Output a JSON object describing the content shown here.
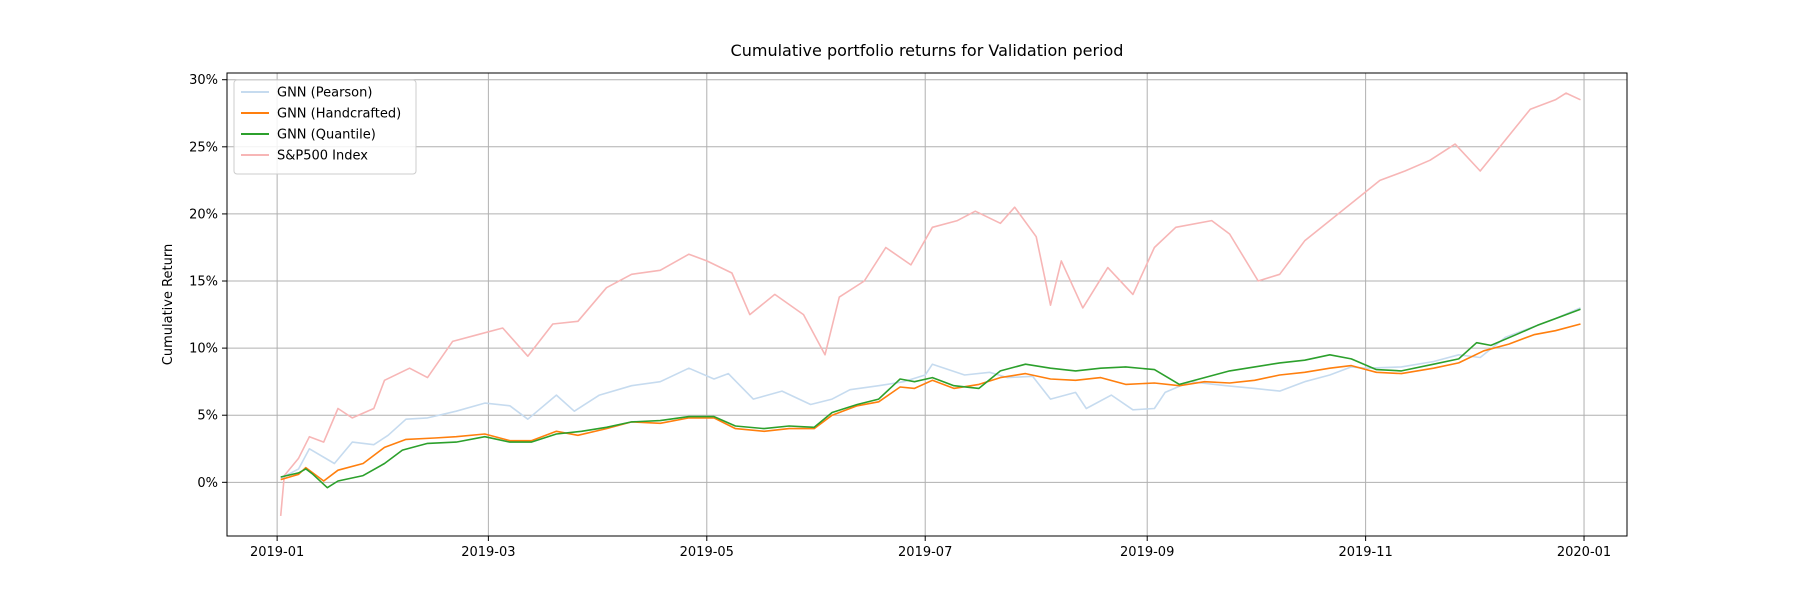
{
  "chart_data": {
    "type": "line",
    "title": "Cumulative portfolio returns for Validation period",
    "xlabel": "",
    "ylabel": "Cumulative Return",
    "x_tick_labels": [
      "2019-01",
      "2019-03",
      "2019-05",
      "2019-07",
      "2019-09",
      "2019-11",
      "2020-01"
    ],
    "x_tick_values": [
      "2019-01-01",
      "2019-03-01",
      "2019-05-01",
      "2019-07-01",
      "2019-09-01",
      "2019-11-01",
      "2020-01-01"
    ],
    "y_tick_labels": [
      "0%",
      "5%",
      "10%",
      "15%",
      "20%",
      "25%",
      "30%"
    ],
    "y_tick_values": [
      0,
      5,
      10,
      15,
      20,
      25,
      30
    ],
    "xlim": [
      "2018-12-18",
      "2020-01-13"
    ],
    "ylim": [
      -4,
      30.5
    ],
    "grid": true,
    "legend_position": "top-left",
    "series": [
      {
        "name": "GNN (Pearson)",
        "color": "#c6dbef",
        "points": [
          [
            "2019-01-02",
            0.3
          ],
          [
            "2019-01-07",
            1.0
          ],
          [
            "2019-01-10",
            2.5
          ],
          [
            "2019-01-17",
            1.4
          ],
          [
            "2019-01-22",
            3.0
          ],
          [
            "2019-01-28",
            2.8
          ],
          [
            "2019-02-01",
            3.5
          ],
          [
            "2019-02-06",
            4.7
          ],
          [
            "2019-02-12",
            4.8
          ],
          [
            "2019-02-20",
            5.3
          ],
          [
            "2019-02-28",
            5.9
          ],
          [
            "2019-03-07",
            5.7
          ],
          [
            "2019-03-12",
            4.7
          ],
          [
            "2019-03-20",
            6.5
          ],
          [
            "2019-03-25",
            5.3
          ],
          [
            "2019-04-01",
            6.5
          ],
          [
            "2019-04-10",
            7.2
          ],
          [
            "2019-04-18",
            7.5
          ],
          [
            "2019-04-26",
            8.5
          ],
          [
            "2019-05-03",
            7.7
          ],
          [
            "2019-05-07",
            8.1
          ],
          [
            "2019-05-14",
            6.2
          ],
          [
            "2019-05-22",
            6.8
          ],
          [
            "2019-05-30",
            5.8
          ],
          [
            "2019-06-05",
            6.2
          ],
          [
            "2019-06-10",
            6.9
          ],
          [
            "2019-06-18",
            7.2
          ],
          [
            "2019-06-25",
            7.5
          ],
          [
            "2019-07-01",
            8.0
          ],
          [
            "2019-07-03",
            8.8
          ],
          [
            "2019-07-12",
            8.0
          ],
          [
            "2019-07-19",
            8.2
          ],
          [
            "2019-07-24",
            7.8
          ],
          [
            "2019-07-31",
            7.9
          ],
          [
            "2019-08-05",
            6.2
          ],
          [
            "2019-08-12",
            6.7
          ],
          [
            "2019-08-15",
            5.5
          ],
          [
            "2019-08-22",
            6.5
          ],
          [
            "2019-08-28",
            5.4
          ],
          [
            "2019-09-03",
            5.5
          ],
          [
            "2019-09-06",
            6.7
          ],
          [
            "2019-09-13",
            7.5
          ],
          [
            "2019-09-23",
            7.2
          ],
          [
            "2019-10-01",
            7.0
          ],
          [
            "2019-10-08",
            6.8
          ],
          [
            "2019-10-15",
            7.5
          ],
          [
            "2019-10-22",
            8.0
          ],
          [
            "2019-10-28",
            8.6
          ],
          [
            "2019-11-01",
            8.5
          ],
          [
            "2019-11-11",
            8.6
          ],
          [
            "2019-11-20",
            9.0
          ],
          [
            "2019-11-27",
            9.5
          ],
          [
            "2019-12-03",
            9.3
          ],
          [
            "2019-12-10",
            10.8
          ],
          [
            "2019-12-17",
            11.5
          ],
          [
            "2019-12-24",
            12.2
          ],
          [
            "2019-12-31",
            13.0
          ]
        ]
      },
      {
        "name": "GNN (Handcrafted)",
        "color": "#ff7f0e",
        "points": [
          [
            "2019-01-02",
            0.2
          ],
          [
            "2019-01-07",
            0.6
          ],
          [
            "2019-01-09",
            1.1
          ],
          [
            "2019-01-14",
            0.1
          ],
          [
            "2019-01-18",
            0.9
          ],
          [
            "2019-01-25",
            1.4
          ],
          [
            "2019-01-31",
            2.6
          ],
          [
            "2019-02-06",
            3.2
          ],
          [
            "2019-02-14",
            3.3
          ],
          [
            "2019-02-20",
            3.4
          ],
          [
            "2019-02-28",
            3.6
          ],
          [
            "2019-03-07",
            3.1
          ],
          [
            "2019-03-13",
            3.1
          ],
          [
            "2019-03-20",
            3.8
          ],
          [
            "2019-03-26",
            3.5
          ],
          [
            "2019-04-03",
            4.0
          ],
          [
            "2019-04-10",
            4.5
          ],
          [
            "2019-04-18",
            4.4
          ],
          [
            "2019-04-26",
            4.8
          ],
          [
            "2019-05-03",
            4.8
          ],
          [
            "2019-05-09",
            4.0
          ],
          [
            "2019-05-17",
            3.8
          ],
          [
            "2019-05-24",
            4.0
          ],
          [
            "2019-05-31",
            4.0
          ],
          [
            "2019-06-05",
            5.0
          ],
          [
            "2019-06-12",
            5.7
          ],
          [
            "2019-06-18",
            6.0
          ],
          [
            "2019-06-24",
            7.1
          ],
          [
            "2019-06-28",
            7.0
          ],
          [
            "2019-07-03",
            7.6
          ],
          [
            "2019-07-09",
            7.0
          ],
          [
            "2019-07-16",
            7.3
          ],
          [
            "2019-07-22",
            7.8
          ],
          [
            "2019-07-29",
            8.1
          ],
          [
            "2019-08-05",
            7.7
          ],
          [
            "2019-08-12",
            7.6
          ],
          [
            "2019-08-19",
            7.8
          ],
          [
            "2019-08-26",
            7.3
          ],
          [
            "2019-09-03",
            7.4
          ],
          [
            "2019-09-10",
            7.2
          ],
          [
            "2019-09-17",
            7.5
          ],
          [
            "2019-09-24",
            7.4
          ],
          [
            "2019-10-01",
            7.6
          ],
          [
            "2019-10-08",
            8.0
          ],
          [
            "2019-10-15",
            8.2
          ],
          [
            "2019-10-22",
            8.5
          ],
          [
            "2019-10-28",
            8.7
          ],
          [
            "2019-11-04",
            8.2
          ],
          [
            "2019-11-11",
            8.1
          ],
          [
            "2019-11-20",
            8.5
          ],
          [
            "2019-11-27",
            8.9
          ],
          [
            "2019-12-04",
            9.8
          ],
          [
            "2019-12-11",
            10.3
          ],
          [
            "2019-12-18",
            11.0
          ],
          [
            "2019-12-24",
            11.3
          ],
          [
            "2019-12-31",
            11.8
          ]
        ]
      },
      {
        "name": "GNN (Quantile)",
        "color": "#2ca02c",
        "points": [
          [
            "2019-01-02",
            0.4
          ],
          [
            "2019-01-07",
            0.7
          ],
          [
            "2019-01-09",
            1.0
          ],
          [
            "2019-01-11",
            0.6
          ],
          [
            "2019-01-15",
            -0.4
          ],
          [
            "2019-01-18",
            0.1
          ],
          [
            "2019-01-25",
            0.5
          ],
          [
            "2019-01-31",
            1.4
          ],
          [
            "2019-02-05",
            2.4
          ],
          [
            "2019-02-12",
            2.9
          ],
          [
            "2019-02-20",
            3.0
          ],
          [
            "2019-02-28",
            3.4
          ],
          [
            "2019-03-07",
            3.0
          ],
          [
            "2019-03-13",
            3.0
          ],
          [
            "2019-03-20",
            3.6
          ],
          [
            "2019-03-27",
            3.8
          ],
          [
            "2019-04-03",
            4.1
          ],
          [
            "2019-04-10",
            4.5
          ],
          [
            "2019-04-18",
            4.6
          ],
          [
            "2019-04-26",
            4.9
          ],
          [
            "2019-05-03",
            4.9
          ],
          [
            "2019-05-09",
            4.2
          ],
          [
            "2019-05-17",
            4.0
          ],
          [
            "2019-05-24",
            4.2
          ],
          [
            "2019-05-31",
            4.1
          ],
          [
            "2019-06-05",
            5.2
          ],
          [
            "2019-06-12",
            5.8
          ],
          [
            "2019-06-18",
            6.2
          ],
          [
            "2019-06-24",
            7.7
          ],
          [
            "2019-06-28",
            7.5
          ],
          [
            "2019-07-03",
            7.8
          ],
          [
            "2019-07-09",
            7.2
          ],
          [
            "2019-07-16",
            7.0
          ],
          [
            "2019-07-22",
            8.3
          ],
          [
            "2019-07-29",
            8.8
          ],
          [
            "2019-08-05",
            8.5
          ],
          [
            "2019-08-12",
            8.3
          ],
          [
            "2019-08-19",
            8.5
          ],
          [
            "2019-08-26",
            8.6
          ],
          [
            "2019-09-03",
            8.4
          ],
          [
            "2019-09-10",
            7.3
          ],
          [
            "2019-09-17",
            7.8
          ],
          [
            "2019-09-24",
            8.3
          ],
          [
            "2019-10-01",
            8.6
          ],
          [
            "2019-10-08",
            8.9
          ],
          [
            "2019-10-15",
            9.1
          ],
          [
            "2019-10-22",
            9.5
          ],
          [
            "2019-10-28",
            9.2
          ],
          [
            "2019-11-04",
            8.4
          ],
          [
            "2019-11-11",
            8.3
          ],
          [
            "2019-11-20",
            8.8
          ],
          [
            "2019-11-27",
            9.2
          ],
          [
            "2019-12-02",
            10.4
          ],
          [
            "2019-12-06",
            10.2
          ],
          [
            "2019-12-13",
            11.0
          ],
          [
            "2019-12-19",
            11.7
          ],
          [
            "2019-12-24",
            12.2
          ],
          [
            "2019-12-31",
            12.9
          ]
        ]
      },
      {
        "name": "S&P500 Index",
        "color": "#f7b6b6",
        "points": [
          [
            "2019-01-02",
            -2.5
          ],
          [
            "2019-01-03",
            0.5
          ],
          [
            "2019-01-07",
            1.8
          ],
          [
            "2019-01-10",
            3.4
          ],
          [
            "2019-01-14",
            3.0
          ],
          [
            "2019-01-18",
            5.5
          ],
          [
            "2019-01-22",
            4.8
          ],
          [
            "2019-01-28",
            5.5
          ],
          [
            "2019-01-31",
            7.6
          ],
          [
            "2019-02-07",
            8.5
          ],
          [
            "2019-02-12",
            7.8
          ],
          [
            "2019-02-19",
            10.5
          ],
          [
            "2019-02-26",
            11.0
          ],
          [
            "2019-03-05",
            11.5
          ],
          [
            "2019-03-12",
            9.4
          ],
          [
            "2019-03-19",
            11.8
          ],
          [
            "2019-03-26",
            12.0
          ],
          [
            "2019-04-03",
            14.5
          ],
          [
            "2019-04-10",
            15.5
          ],
          [
            "2019-04-18",
            15.8
          ],
          [
            "2019-04-26",
            17.0
          ],
          [
            "2019-05-01",
            16.5
          ],
          [
            "2019-05-08",
            15.6
          ],
          [
            "2019-05-13",
            12.5
          ],
          [
            "2019-05-20",
            14.0
          ],
          [
            "2019-05-28",
            12.5
          ],
          [
            "2019-06-03",
            9.5
          ],
          [
            "2019-06-07",
            13.8
          ],
          [
            "2019-06-14",
            15.0
          ],
          [
            "2019-06-20",
            17.5
          ],
          [
            "2019-06-27",
            16.2
          ],
          [
            "2019-07-03",
            19.0
          ],
          [
            "2019-07-10",
            19.5
          ],
          [
            "2019-07-15",
            20.2
          ],
          [
            "2019-07-22",
            19.3
          ],
          [
            "2019-07-26",
            20.5
          ],
          [
            "2019-08-01",
            18.3
          ],
          [
            "2019-08-05",
            13.2
          ],
          [
            "2019-08-08",
            16.5
          ],
          [
            "2019-08-14",
            13.0
          ],
          [
            "2019-08-21",
            16.0
          ],
          [
            "2019-08-28",
            14.0
          ],
          [
            "2019-09-03",
            17.5
          ],
          [
            "2019-09-09",
            19.0
          ],
          [
            "2019-09-19",
            19.5
          ],
          [
            "2019-09-24",
            18.5
          ],
          [
            "2019-10-02",
            15.0
          ],
          [
            "2019-10-08",
            15.5
          ],
          [
            "2019-10-15",
            18.0
          ],
          [
            "2019-10-22",
            19.5
          ],
          [
            "2019-10-29",
            21.0
          ],
          [
            "2019-11-05",
            22.5
          ],
          [
            "2019-11-12",
            23.2
          ],
          [
            "2019-11-19",
            24.0
          ],
          [
            "2019-11-26",
            25.2
          ],
          [
            "2019-12-03",
            23.2
          ],
          [
            "2019-12-10",
            25.5
          ],
          [
            "2019-12-17",
            27.8
          ],
          [
            "2019-12-24",
            28.5
          ],
          [
            "2019-12-27",
            29.0
          ],
          [
            "2019-12-31",
            28.5
          ]
        ]
      }
    ]
  }
}
